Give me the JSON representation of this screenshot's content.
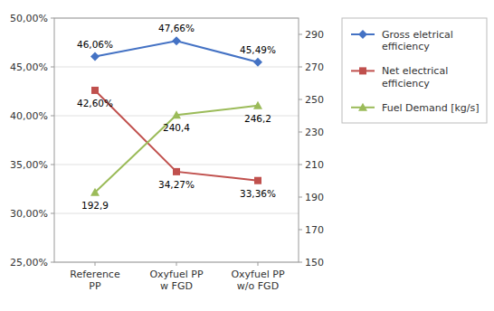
{
  "chart_data": {
    "type": "line",
    "categories": [
      "Reference\nPP",
      "Oxyfuel PP\nw FGD",
      "Oxyfuel PP\nw/o FGD"
    ],
    "series": [
      {
        "name": "Gross eletrical\nefficiency",
        "color": "#4472C4",
        "marker": "diamond",
        "values": [
          0.4606,
          0.4766,
          0.4549
        ],
        "value_labels": [
          "46,06%",
          "47,66%",
          "45,49%"
        ]
      },
      {
        "name": "Net electrical\nefficiency",
        "color": "#C0504D",
        "marker": "square",
        "values": [
          0.426,
          0.3427,
          0.3336
        ],
        "value_labels": [
          "42,60%",
          "34,27%",
          "33,36%"
        ]
      },
      {
        "name": "Fuel Demand [kg/s]",
        "color": "#9BBB59",
        "marker": "triangle",
        "axis": "y2",
        "values": [
          192.9,
          240.4,
          246.2
        ],
        "value_labels": [
          "192,9",
          "240,4",
          "246,2"
        ]
      }
    ],
    "ylim": [
      0.25,
      0.5
    ],
    "yticks": [
      {
        "value": 0.25,
        "label": "25,00%"
      },
      {
        "value": 0.3,
        "label": "30,00%"
      },
      {
        "value": 0.35,
        "label": "35,00%"
      },
      {
        "value": 0.4,
        "label": "40,00%"
      },
      {
        "value": 0.45,
        "label": "45,00%"
      },
      {
        "value": 0.5,
        "label": "50,00%"
      }
    ],
    "y2lim": [
      150,
      300
    ],
    "y2ticks": [
      150,
      170,
      190,
      210,
      230,
      250,
      270,
      290
    ],
    "grid": true,
    "legend": "right",
    "data_labels": true
  }
}
